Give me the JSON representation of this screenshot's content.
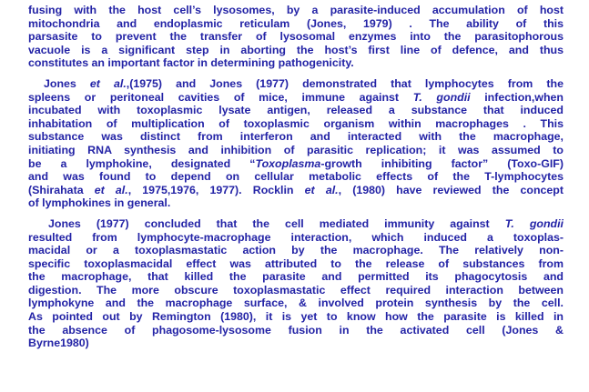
{
  "paragraphs": [
    {
      "lines": [
        "fusing with the host cell’s lysosomes, by a parasite-induced accumulation of host",
        "mitochondria and endoplasmic reticulam (Jones, 1979) . The ability of this",
        "parsasite to prevent the transfer of lysosomal enzymes into the parasitophorous",
        "vacuole is a significant step in aborting the host’s first line of defence, and thus",
        "constitutes an important factor in determining pathogenicity."
      ]
    },
    {
      "lines": [
        "Jones et al.,(1975) and Jones (1977) demonstrated that lymphocytes from the",
        "spleens or peritoneal cavities of mice, immune against T. gondii infection,when",
        "incubated with toxoplasmic lysate antigen, released a substance that induced",
        "inhabitation of multiplication of toxoplasmic organism within macrophages . This",
        "substance was distinct from interferon and interacted with the macrophage,",
        "initiating RNA synthesis and inhibition of parasitic replication; it was assumed to",
        "be a lymphokine, designated “Toxoplasma-growth inhibiting factor” (Toxo-GIF)",
        "and was found to depend on cellular metabolic effects of the T-lymphocytes",
        "(Shirahata et al., 1975,1976, 1977). Rocklin et al., (1980) have reviewed the concept",
        "of lymphokines in general."
      ]
    },
    {
      "lines": [
        "Jones (1977) concluded that the cell mediated immunity against T. gondii",
        "resulted from lymphocyte-macrophage interaction, which induced a toxoplas-",
        "macidal or a toxoplasmastatic action by the macrophage. The relatively non-",
        "specific toxoplasmacidal effect was attributed to the release of substances from",
        "the macrophage, that killed the parasite and permitted its phagocytosis and",
        "digestion. The more obscure toxoplasmastatic effect required interaction between",
        "lymphokyne and the macrophage surface, & involved protein synthesis by the cell.",
        "As pointed out by Remington (1980), it is yet to know how the parasite is killed in",
        "the absence of phagosome-lysosome fusion in the activated cell (Jones &",
        "Byrne1980)"
      ]
    }
  ],
  "colors": {
    "text": "#2323a6",
    "background": "#ffffff"
  }
}
